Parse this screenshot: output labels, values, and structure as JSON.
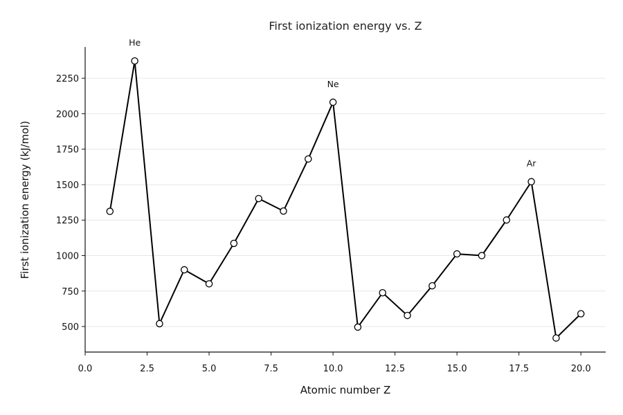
{
  "chart_data": {
    "type": "line",
    "title": "First ionization energy vs. Z",
    "xlabel": "Atomic number Z",
    "ylabel": "First ionization energy (kJ/mol)",
    "xlim": [
      0,
      21
    ],
    "ylim": [
      320,
      2470
    ],
    "xticks": [
      0,
      2.5,
      5,
      7.5,
      10,
      12.5,
      15,
      17.5,
      20
    ],
    "xtick_labels": [
      "0.0",
      "2.5",
      "5.0",
      "7.5",
      "10.0",
      "12.5",
      "15.0",
      "17.5",
      "20.0"
    ],
    "yticks": [
      500,
      750,
      1000,
      1250,
      1500,
      1750,
      2000,
      2250
    ],
    "ytick_labels": [
      "500",
      "750",
      "1000",
      "1250",
      "1500",
      "1750",
      "2000",
      "2250"
    ],
    "grid": "horizontal",
    "series": [
      {
        "x": [
          1,
          2,
          3,
          4,
          5,
          6,
          7,
          8,
          9,
          10,
          11,
          12,
          13,
          14,
          15,
          16,
          17,
          18,
          19,
          20
        ],
        "y": [
          1312,
          2372,
          520,
          900,
          801,
          1086,
          1402,
          1314,
          1681,
          2081,
          496,
          738,
          578,
          787,
          1012,
          1000,
          1251,
          1521,
          419,
          590
        ],
        "color": "#000000",
        "marker": "open-circle"
      }
    ],
    "annotations": [
      {
        "text": "He",
        "x": 2,
        "y": 2372
      },
      {
        "text": "Ne",
        "x": 10,
        "y": 2081
      },
      {
        "text": "Ar",
        "x": 18,
        "y": 1521
      }
    ]
  }
}
